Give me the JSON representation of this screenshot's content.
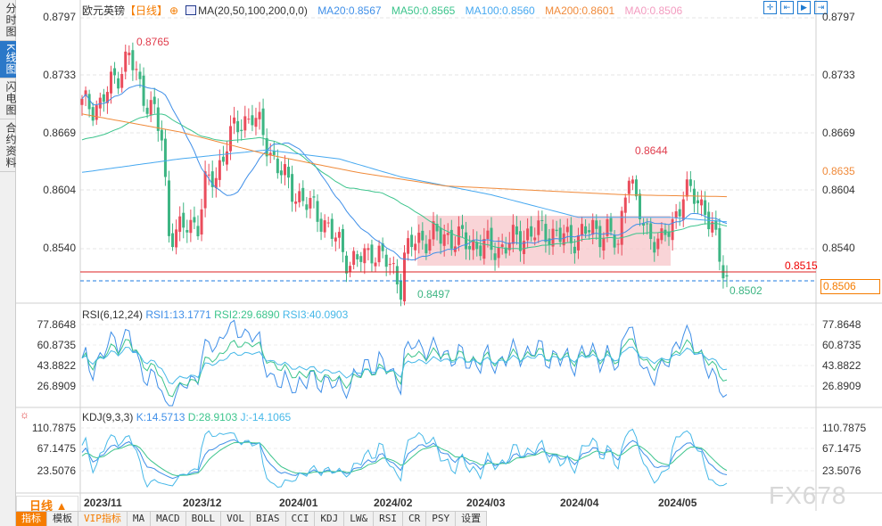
{
  "sidebar": {
    "tabs": [
      "分时图",
      "K线图",
      "闪电图",
      "合约资料"
    ],
    "active": 1
  },
  "header": {
    "symbol": "欧元英镑",
    "period": "【日线】",
    "ma_label": "MA(20,50,100,200,0,0)",
    "ma20": "MA20:0.8567",
    "ma50": "MA50:0.8565",
    "ma100": "MA100:0.8560",
    "ma200": "MA200:0.8601",
    "ma0": "MA0:0.8506"
  },
  "colors": {
    "up": "#ea4d5c",
    "down": "#3db583",
    "ma20": "#3f8fe8",
    "ma50": "#3cc48c",
    "ma100": "#46a8f0",
    "ma200": "#f08a3a",
    "ma0": "#f39bc0"
  },
  "price_axis": {
    "left": [
      "0.8797",
      "0.8733",
      "0.8669",
      "0.8604",
      "0.8540"
    ],
    "right": [
      "0.8797",
      "0.8733",
      "0.8669",
      "0.8604",
      "0.8540"
    ],
    "min": 0.848,
    "max": 0.8797
  },
  "annotations": {
    "high": "0.8765",
    "peak2": "0.8644",
    "low": "0.8497",
    "last_low": "0.8502",
    "ma200_tag": "0.8635",
    "red_line": "0.8515",
    "current": "0.8506"
  },
  "price_path": [
    [
      0,
      0.87
    ],
    [
      5,
      0.87
    ],
    [
      9,
      0.873
    ],
    [
      13,
      0.8755
    ],
    [
      16,
      0.872
    ],
    [
      20,
      0.869
    ],
    [
      22,
      0.866
    ],
    [
      24,
      0.856
    ],
    [
      27,
      0.856
    ],
    [
      32,
      0.857
    ],
    [
      34,
      0.861
    ],
    [
      37,
      0.862
    ],
    [
      40,
      0.866
    ],
    [
      44,
      0.868
    ],
    [
      47,
      0.869
    ],
    [
      50,
      0.8665
    ],
    [
      53,
      0.864
    ],
    [
      57,
      0.861
    ],
    [
      62,
      0.859
    ],
    [
      66,
      0.8575
    ],
    [
      70,
      0.855
    ],
    [
      74,
      0.8525
    ],
    [
      78,
      0.853
    ],
    [
      80,
      0.854
    ],
    [
      84,
      0.8525
    ],
    [
      87,
      0.851
    ],
    [
      88,
      0.85
    ],
    [
      89,
      0.853
    ],
    [
      92,
      0.855
    ],
    [
      100,
      0.8555
    ],
    [
      108,
      0.8545
    ],
    [
      115,
      0.854
    ],
    [
      122,
      0.8555
    ],
    [
      128,
      0.856
    ],
    [
      134,
      0.855
    ],
    [
      140,
      0.856
    ],
    [
      145,
      0.856
    ],
    [
      148,
      0.854
    ],
    [
      150,
      0.861
    ],
    [
      151,
      0.863
    ],
    [
      153,
      0.8585
    ],
    [
      156,
      0.856
    ],
    [
      160,
      0.8545
    ],
    [
      163,
      0.857
    ],
    [
      166,
      0.86
    ],
    [
      169,
      0.86
    ],
    [
      172,
      0.8585
    ],
    [
      175,
      0.8545
    ],
    [
      178,
      0.8506
    ]
  ],
  "ma100_path": [
    [
      0,
      0.8625
    ],
    [
      27,
      0.864
    ],
    [
      51,
      0.865
    ],
    [
      71,
      0.864
    ],
    [
      88,
      0.862
    ],
    [
      113,
      0.86
    ],
    [
      137,
      0.8575
    ],
    [
      162,
      0.8575
    ],
    [
      178,
      0.857
    ]
  ],
  "ma200_path": [
    [
      0,
      0.869
    ],
    [
      27,
      0.867
    ],
    [
      51,
      0.8645
    ],
    [
      76,
      0.8625
    ],
    [
      100,
      0.861
    ],
    [
      125,
      0.8605
    ],
    [
      150,
      0.86
    ],
    [
      178,
      0.8598
    ]
  ],
  "rsi": {
    "label": "RSI(6,12,24)",
    "rsi1": "RSI1:13.1771",
    "rsi2": "RSI2:29.6890",
    "rsi3": "RSI3:40.0903",
    "axis": [
      "77.8648",
      "60.8735",
      "43.8822",
      "26.8909"
    ]
  },
  "kdj": {
    "label": "KDJ(9,3,3)",
    "k": "K:14.5713",
    "d": "D:28.9103",
    "j": "J:-14.1065",
    "axis": [
      "110.7875",
      "67.1475",
      "23.5076"
    ]
  },
  "dates": [
    "2023/11",
    "2023/12",
    "2024/01",
    "2024/02",
    "2024/03",
    "2024/04",
    "2024/05"
  ],
  "period_button": "日线 ▲",
  "bottom_tabs": [
    "指标",
    "模板",
    "VIP指标",
    "MA",
    "MACD",
    "BOLL",
    "VOL",
    "BIAS",
    "CCI",
    "KDJ",
    "LW&",
    "RSI",
    "CR",
    "PSY",
    "设置"
  ],
  "watermark": "FX678"
}
